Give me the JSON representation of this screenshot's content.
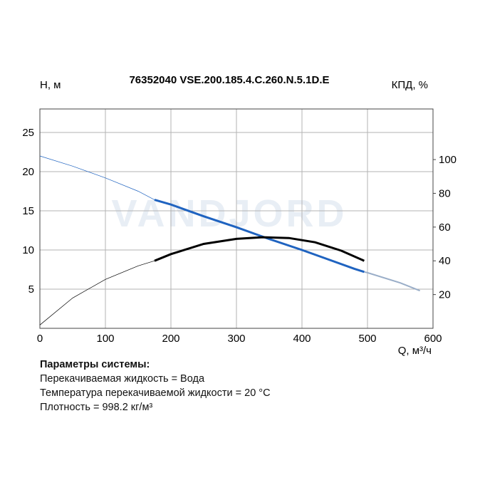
{
  "chart_data": {
    "type": "line",
    "title": "76352040 VSE.200.185.4.C.260.N.5.1D.E",
    "ylabel": "H, м",
    "y2label": "КПД, %",
    "xlabel": "Q, м³/ч",
    "xlim": [
      0,
      600
    ],
    "ylim": [
      0,
      28
    ],
    "y2lim": [
      0,
      130
    ],
    "xticks": [
      0,
      100,
      200,
      300,
      400,
      500,
      600
    ],
    "yticks": [
      5,
      10,
      15,
      20,
      25
    ],
    "y2ticks": [
      20,
      40,
      60,
      80,
      100
    ],
    "grid": true,
    "watermark": "VANDJORD",
    "series": [
      {
        "axis": "y",
        "color": "#1f63c0",
        "x": [
          0,
          50,
          100,
          150,
          175,
          200,
          250,
          300,
          350,
          400,
          450,
          480,
          495,
          500,
          550,
          580
        ],
        "y": [
          22,
          20.7,
          19.2,
          17.5,
          16.4,
          15.8,
          14.3,
          12.9,
          11.4,
          10.0,
          8.5,
          7.6,
          7.2,
          7.1,
          5.8,
          4.8
        ],
        "operating_range": [
          175,
          495
        ]
      },
      {
        "axis": "y2",
        "color": "#000000",
        "x": [
          0,
          50,
          100,
          150,
          175,
          200,
          250,
          300,
          340,
          380,
          420,
          460,
          495
        ],
        "y": [
          2,
          18,
          29,
          37,
          40,
          44,
          50,
          53,
          54,
          53.5,
          51,
          46,
          40
        ],
        "operating_range": [
          175,
          495
        ]
      }
    ]
  },
  "params": {
    "title": "Параметры системы:",
    "lines": [
      "Перекачиваемая жидкость = Вода",
      "Температура перекачиваемой жидкости = 20 °C",
      "Плотность = 998.2 кг/м³"
    ]
  },
  "colors": {
    "grid": "#b3b3b3",
    "head_extension": "#9aaec8",
    "watermark": "#e8eef5"
  }
}
